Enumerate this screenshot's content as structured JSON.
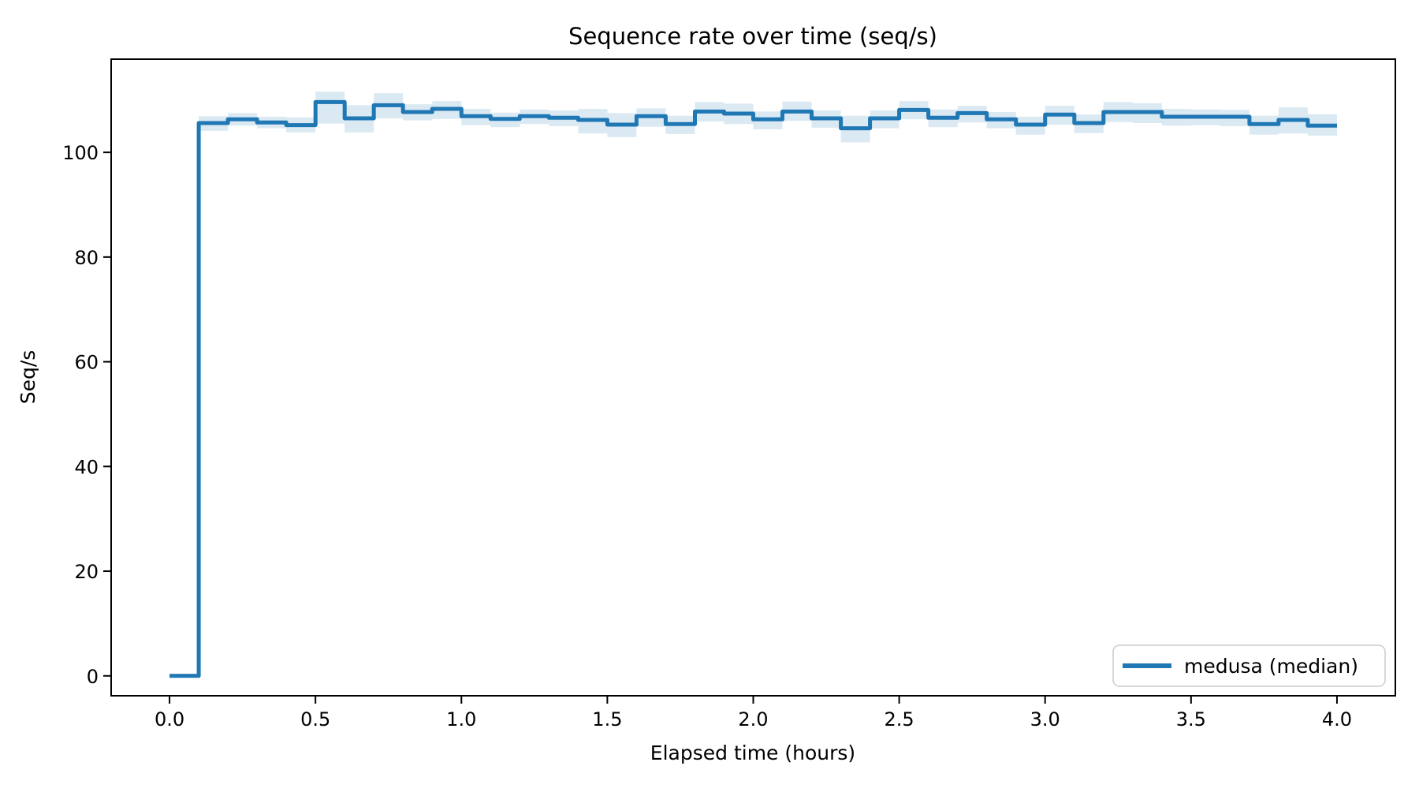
{
  "figure": {
    "background": "#ffffff"
  },
  "chart_data": {
    "type": "line",
    "line_style": "step-post",
    "title": "Sequence rate over time (seq/s)",
    "xlabel": "Elapsed time (hours)",
    "ylabel": "Seq/s",
    "grid": false,
    "xlim": [
      -0.2,
      4.2
    ],
    "ylim": [
      -3.8,
      117.8
    ],
    "xticks": {
      "values": [
        0.0,
        0.5,
        1.0,
        1.5,
        2.0,
        2.5,
        3.0,
        3.5,
        4.0
      ],
      "labels": [
        "0.0",
        "0.5",
        "1.0",
        "1.5",
        "2.0",
        "2.5",
        "3.0",
        "3.5",
        "4.0"
      ]
    },
    "yticks": {
      "values": [
        0,
        20,
        40,
        60,
        80,
        100
      ],
      "labels": [
        "0",
        "20",
        "40",
        "60",
        "80",
        "100"
      ]
    },
    "legend": {
      "position": "lower-right",
      "entries": [
        {
          "label": "medusa (median)",
          "color": "#1f77b4"
        }
      ]
    },
    "series": [
      {
        "name": "medusa (median)",
        "color": "#1f77b4",
        "line_width": 5,
        "band_color": "#1f77b4",
        "band_opacity": 0.16,
        "x_edges": [
          0.0,
          0.1,
          0.2,
          0.3,
          0.4,
          0.5,
          0.6,
          0.7,
          0.8,
          0.9,
          1.0,
          1.1,
          1.2,
          1.3,
          1.4,
          1.5,
          1.6,
          1.7,
          1.8,
          1.9,
          2.0,
          2.1,
          2.2,
          2.3,
          2.4,
          2.5,
          2.6,
          2.7,
          2.8,
          2.9,
          3.0,
          3.1,
          3.2,
          3.3,
          3.4,
          3.5,
          3.6,
          3.7,
          3.8,
          3.9,
          4.0
        ],
        "median": [
          0,
          105.6,
          106.3,
          105.7,
          105.2,
          109.6,
          106.5,
          109.0,
          107.7,
          108.3,
          106.9,
          106.4,
          106.9,
          106.6,
          106.2,
          105.3,
          106.9,
          105.4,
          107.8,
          107.4,
          106.3,
          107.8,
          106.5,
          104.6,
          106.5,
          108.1,
          106.6,
          107.5,
          106.3,
          105.3,
          107.2,
          105.6,
          107.7,
          107.7,
          106.8,
          106.8,
          106.8,
          105.4,
          106.2,
          105.1
        ],
        "band_high": [
          0,
          106.9,
          107.5,
          106.8,
          106.7,
          111.6,
          109.0,
          111.3,
          109.2,
          109.8,
          108.3,
          107.6,
          108.2,
          108.0,
          108.3,
          107.5,
          108.4,
          107.0,
          109.6,
          109.3,
          107.8,
          109.7,
          108.0,
          107.0,
          108.0,
          109.8,
          108.2,
          108.9,
          107.7,
          106.8,
          108.9,
          107.2,
          109.6,
          109.4,
          108.3,
          108.2,
          108.1,
          107.0,
          108.6,
          107.3
        ],
        "band_low": [
          0,
          104.1,
          105.1,
          104.6,
          103.8,
          105.5,
          103.8,
          106.5,
          106.1,
          106.4,
          105.2,
          104.8,
          105.4,
          105.0,
          103.6,
          102.9,
          104.9,
          103.5,
          105.9,
          105.4,
          104.4,
          106.0,
          104.7,
          101.9,
          104.6,
          106.3,
          104.8,
          105.7,
          104.6,
          103.4,
          105.3,
          103.7,
          105.8,
          105.6,
          105.1,
          105.2,
          105.0,
          103.4,
          103.6,
          103.2
        ]
      }
    ]
  }
}
